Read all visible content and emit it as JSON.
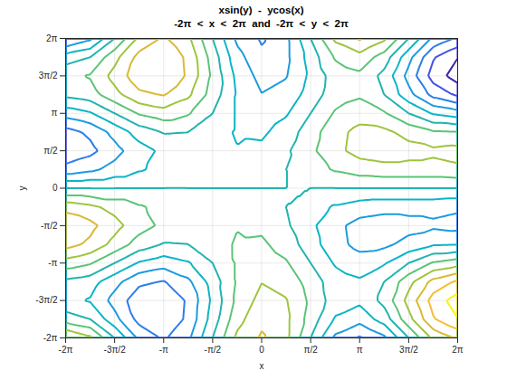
{
  "chart_data": {
    "type": "contour",
    "title": "xsin(y)  -  ycos(x)",
    "subtitle": "-2π  <  x  <  2π  and  -2π  <  y  <  2π",
    "x_label": "x",
    "y_label": "y",
    "x": [
      -6.2832,
      -5.4978,
      -4.7124,
      -3.927,
      -3.1416,
      -2.3562,
      -1.5708,
      -0.7854,
      0,
      0.7854,
      1.5708,
      2.3562,
      3.1416,
      3.927,
      4.7124,
      5.4978,
      6.2832
    ],
    "y": [
      -6.2832,
      -5.4978,
      -4.7124,
      -3.927,
      -3.1416,
      -2.3562,
      -1.5708,
      -0.7854,
      0,
      0.7854,
      1.5708,
      2.3562,
      3.1416,
      3.927,
      4.7124,
      5.4978,
      6.2832
    ],
    "z": [
      [
        6.28,
        4.44,
        0,
        -4.44,
        -6.28,
        -4.44,
        0,
        4.44,
        6.28,
        4.44,
        0,
        -4.44,
        -6.28,
        -4.44,
        0,
        4.44,
        6.28
      ],
      [
        1.06,
        0,
        -3.33,
        -6.67,
        -7.72,
        -5.56,
        -1.11,
        3.33,
        5.5,
        4.45,
        1.11,
        -2.22,
        -3.28,
        -1.11,
        3.33,
        7.78,
        9.94
      ],
      [
        -1.57,
        -2.17,
        -4.71,
        -7.26,
        -7.85,
        -5.69,
        -1.57,
        2.54,
        4.71,
        4.12,
        1.57,
        -0.97,
        -1.57,
        0.6,
        4.71,
        8.83,
        10.99
      ],
      [
        -0.51,
        -1.11,
        -3.33,
        -5.56,
        -6.15,
        -4.45,
        -1.11,
        2.22,
        3.93,
        3.34,
        1.11,
        -1.11,
        -1.71,
        0,
        3.33,
        6.67,
        8.37
      ],
      [
        3.14,
        2.22,
        0,
        -2.22,
        -3.14,
        -2.22,
        0,
        2.22,
        3.14,
        2.22,
        0,
        -2.22,
        -3.14,
        -2.22,
        0,
        2.22,
        3.14
      ],
      [
        6.8,
        5.56,
        3.33,
        1.11,
        -0.14,
        0,
        1.11,
        2.23,
        2.36,
        1.11,
        -1.11,
        -3.34,
        -4.58,
        -4.45,
        -3.33,
        -2.22,
        -2.08
      ],
      [
        7.85,
        6.61,
        4.71,
        2.82,
        1.57,
        1.25,
        1.57,
        1.9,
        1.57,
        0.32,
        -1.57,
        -3.47,
        -4.71,
        -5.04,
        -4.71,
        -4.39,
        -4.71
      ],
      [
        5.23,
        4.45,
        3.33,
        2.22,
        1.43,
        1.11,
        1.11,
        1.12,
        0.79,
        0,
        -1.11,
        -2.23,
        -3.01,
        -3.34,
        -3.33,
        -3.33,
        -3.65
      ],
      [
        0,
        0,
        0,
        0,
        0,
        0,
        0,
        0,
        0,
        0,
        0,
        0,
        0,
        0,
        0,
        0,
        0
      ],
      [
        -5.23,
        -4.45,
        -3.33,
        -2.22,
        -1.43,
        -1.11,
        -1.11,
        -1.12,
        -0.79,
        0,
        1.11,
        2.23,
        3.01,
        3.34,
        3.33,
        3.33,
        3.65
      ],
      [
        -7.85,
        -6.61,
        -4.71,
        -2.82,
        -1.57,
        -1.25,
        -1.57,
        -1.9,
        -1.57,
        -0.32,
        1.57,
        3.47,
        4.71,
        5.04,
        4.71,
        4.39,
        4.71
      ],
      [
        -6.8,
        -5.56,
        -3.33,
        -1.11,
        0.14,
        0,
        -1.11,
        -2.23,
        -2.36,
        -1.11,
        1.11,
        3.34,
        4.58,
        4.45,
        3.33,
        2.22,
        2.08
      ],
      [
        -3.14,
        -2.22,
        0,
        2.22,
        3.14,
        2.22,
        0,
        -2.22,
        -3.14,
        -2.22,
        0,
        2.22,
        3.14,
        2.22,
        0,
        -2.22,
        -3.14
      ],
      [
        0.51,
        1.11,
        3.33,
        5.56,
        6.15,
        4.45,
        1.11,
        -2.22,
        -3.93,
        -3.34,
        -1.11,
        1.11,
        1.71,
        0,
        -3.33,
        -6.67,
        -8.37
      ],
      [
        1.57,
        2.17,
        4.71,
        7.26,
        7.85,
        5.69,
        1.57,
        -2.54,
        -4.71,
        -4.12,
        -1.57,
        0.97,
        1.57,
        -0.6,
        -4.71,
        -8.83,
        -10.99
      ],
      [
        -1.06,
        0,
        3.33,
        6.67,
        7.72,
        5.56,
        1.11,
        -3.33,
        -5.5,
        -4.45,
        -1.11,
        2.22,
        3.28,
        1.11,
        -3.33,
        -7.78,
        -9.94
      ],
      [
        -6.28,
        -4.44,
        0,
        4.44,
        6.28,
        4.44,
        0,
        -4.44,
        -6.28,
        -4.44,
        0,
        4.44,
        6.28,
        4.44,
        0,
        -4.44,
        -6.28
      ]
    ],
    "levels": [
      -10,
      -8,
      -6,
      -4,
      -2,
      0,
      2,
      4,
      6,
      8,
      10
    ],
    "colors": [
      "#3E26A8",
      "#4352E6",
      "#2D7EE8",
      "#1C9BDF",
      "#0BB5C6",
      "#20B4AE",
      "#5BC476",
      "#9FC43F",
      "#D9BA35",
      "#F5BE33",
      "#F9F518"
    ],
    "xlim": [
      -6.2832,
      6.2832
    ],
    "ylim": [
      -6.2832,
      6.2832
    ],
    "xticks": [
      {
        "value": -6.2832,
        "label": "-2π"
      },
      {
        "value": -4.7124,
        "label": "-3π/2"
      },
      {
        "value": -3.1416,
        "label": "-π"
      },
      {
        "value": -1.5708,
        "label": "-π/2"
      },
      0,
      {
        "value": 1.5708,
        "label": "π/2"
      },
      {
        "value": 3.1416,
        "label": "π"
      },
      {
        "value": 4.7124,
        "label": "3π/2"
      },
      {
        "value": 6.2832,
        "label": "2π"
      }
    ],
    "yticks": [
      {
        "value": -6.2832,
        "label": "-2π"
      },
      {
        "value": -4.7124,
        "label": "-3π/2"
      },
      {
        "value": -3.1416,
        "label": "-π"
      },
      {
        "value": -1.5708,
        "label": "-π/2"
      },
      0,
      {
        "value": 1.5708,
        "label": "π/2"
      },
      {
        "value": 3.1416,
        "label": "π"
      },
      {
        "value": 4.7124,
        "label": "3π/2"
      },
      {
        "value": 6.2832,
        "label": "2π"
      }
    ],
    "grid": true
  }
}
